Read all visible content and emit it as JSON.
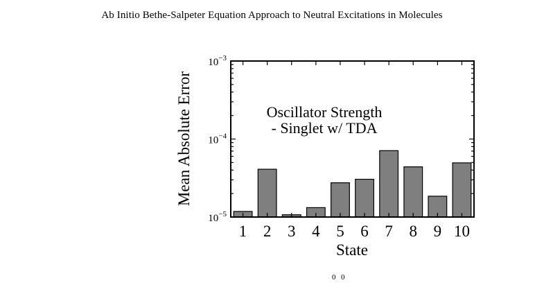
{
  "header": {
    "running_title": "Ab Initio Bethe-Salpeter Equation Approach to Neutral Excitations in Molecules"
  },
  "colors": {
    "bar_fill": "#7f7f7f",
    "bar_stroke": "#000000",
    "axis": "#000000"
  },
  "chart_data": {
    "type": "bar",
    "title": "Oscillator Strength",
    "subtitle": "- Singlet w/ TDA",
    "xlabel": "State",
    "ylabel": "Mean Absolute Error",
    "categories": [
      "1",
      "2",
      "3",
      "4",
      "5",
      "6",
      "7",
      "8",
      "9",
      "10"
    ],
    "values": [
      1.18e-05,
      4.1e-05,
      1.07e-05,
      1.32e-05,
      2.75e-05,
      3.05e-05,
      7.1e-05,
      4.4e-05,
      1.85e-05,
      4.95e-05
    ],
    "yscale": "log",
    "ylim": [
      1e-05,
      0.001
    ],
    "yticks": [
      {
        "base": "10",
        "exp": "−5",
        "value": 1e-05
      },
      {
        "base": "10",
        "exp": "−4",
        "value": 0.0001
      },
      {
        "base": "10",
        "exp": "−3",
        "value": 0.001
      }
    ],
    "grid": false,
    "legend": "none"
  },
  "footer_fragment": {
    "left": "0",
    "right": "0"
  }
}
